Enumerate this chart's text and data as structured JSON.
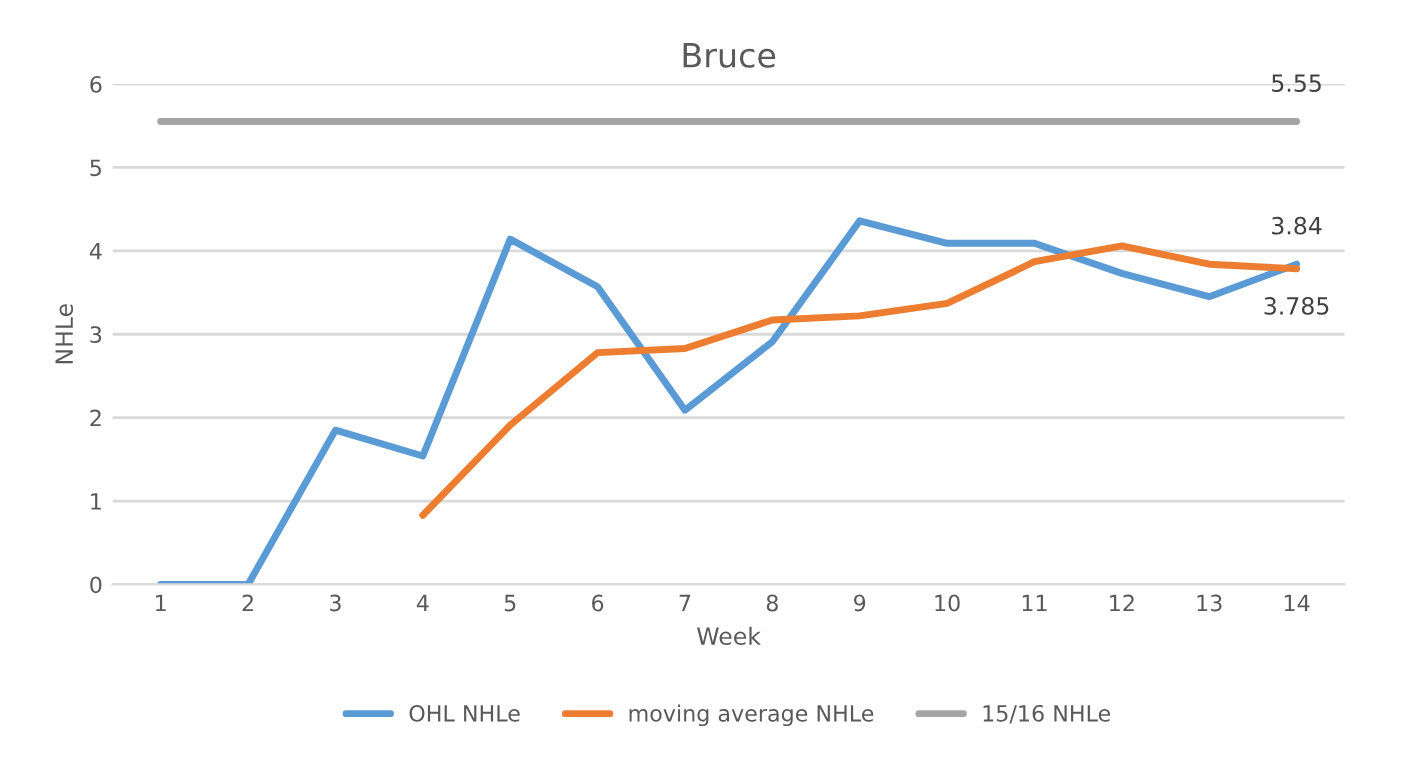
{
  "chart_data": {
    "type": "line",
    "title": "Bruce",
    "xlabel": "Week",
    "ylabel": "NHLe",
    "categories": [
      "1",
      "2",
      "3",
      "4",
      "5",
      "6",
      "7",
      "8",
      "9",
      "10",
      "11",
      "12",
      "13",
      "14"
    ],
    "series": [
      {
        "name": "OHL NHLe",
        "color": "#5b9bd5",
        "values": [
          0,
          0,
          1.85,
          1.54,
          4.14,
          3.57,
          2.09,
          2.91,
          4.36,
          4.09,
          4.09,
          3.73,
          3.45,
          3.84
        ],
        "value_labels": [
          null,
          null,
          null,
          null,
          null,
          null,
          null,
          null,
          null,
          null,
          null,
          null,
          null,
          "3.84"
        ]
      },
      {
        "name": "moving average NHLe",
        "color": "#ed7d31",
        "values": [
          null,
          null,
          null,
          0.83,
          1.91,
          2.78,
          2.83,
          3.17,
          3.22,
          3.37,
          3.87,
          4.06,
          3.84,
          3.785
        ],
        "value_labels": [
          null,
          null,
          null,
          null,
          null,
          null,
          null,
          null,
          null,
          null,
          null,
          null,
          null,
          "3.785"
        ]
      },
      {
        "name": "15/16 NHLe",
        "color": "#a5a5a5",
        "values": [
          5.55,
          5.55,
          5.55,
          5.55,
          5.55,
          5.55,
          5.55,
          5.55,
          5.55,
          5.55,
          5.55,
          5.55,
          5.55,
          5.55
        ],
        "value_labels": [
          null,
          null,
          null,
          null,
          null,
          null,
          null,
          null,
          null,
          null,
          null,
          null,
          null,
          "5.55"
        ]
      }
    ],
    "ylim": [
      0,
      6
    ],
    "yticks": [
      0,
      1,
      2,
      3,
      4,
      5,
      6
    ],
    "grid": "y",
    "legend": "bottom",
    "marker": "none",
    "line_style": "solid"
  }
}
